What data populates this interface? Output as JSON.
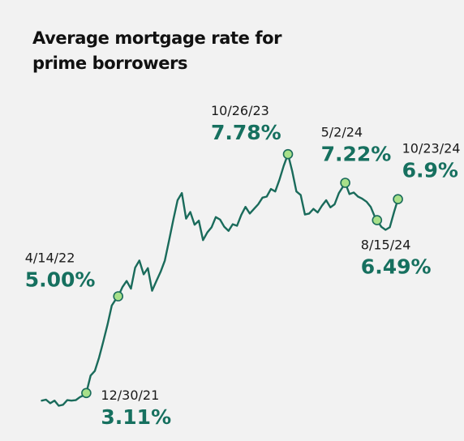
{
  "chart_data": {
    "type": "line",
    "title": "Average mortgage rate for prime borrowers",
    "xlabel": "",
    "ylabel": "",
    "grid": false,
    "legend": "none",
    "line_color": "#1a6b5b",
    "marker_color": "#a8e08a",
    "value_color": "#16705f",
    "ylim": [
      2.9,
      8.1
    ],
    "x_range": [
      "2021-08-01",
      "2024-11-01"
    ],
    "series": [
      {
        "x": [
          "2021-08-05",
          "2021-08-19",
          "2021-09-02",
          "2021-09-16",
          "2021-09-30",
          "2021-10-14",
          "2021-10-28",
          "2021-11-11",
          "2021-11-25",
          "2021-12-09",
          "2021-12-23",
          "2021-12-30",
          "2022-01-13",
          "2022-01-27",
          "2022-02-10",
          "2022-02-24",
          "2022-03-10",
          "2022-03-24",
          "2022-04-07",
          "2022-04-14",
          "2022-04-28",
          "2022-05-12",
          "2022-05-26",
          "2022-06-09",
          "2022-06-23",
          "2022-07-07",
          "2022-07-21",
          "2022-08-04",
          "2022-08-18",
          "2022-09-01",
          "2022-09-15",
          "2022-09-29",
          "2022-10-13",
          "2022-10-27",
          "2022-11-10",
          "2022-11-24",
          "2022-12-08",
          "2022-12-22",
          "2023-01-05",
          "2023-01-19",
          "2023-02-02",
          "2023-02-16",
          "2023-03-02",
          "2023-03-16",
          "2023-03-30",
          "2023-04-13",
          "2023-04-27",
          "2023-05-11",
          "2023-05-25",
          "2023-06-08",
          "2023-06-22",
          "2023-07-06",
          "2023-07-20",
          "2023-08-03",
          "2023-08-17",
          "2023-08-31",
          "2023-09-14",
          "2023-09-28",
          "2023-10-12",
          "2023-10-26",
          "2023-11-09",
          "2023-11-23",
          "2023-12-07",
          "2023-12-21",
          "2024-01-04",
          "2024-01-18",
          "2024-02-01",
          "2024-02-15",
          "2024-02-29",
          "2024-03-14",
          "2024-03-28",
          "2024-04-11",
          "2024-04-25",
          "2024-05-02",
          "2024-05-16",
          "2024-05-30",
          "2024-06-13",
          "2024-06-27",
          "2024-07-11",
          "2024-07-25",
          "2024-08-08",
          "2024-08-15",
          "2024-08-29",
          "2024-09-12",
          "2024-09-26",
          "2024-10-10",
          "2024-10-23"
        ],
        "values": [
          2.96,
          2.98,
          2.91,
          2.96,
          2.86,
          2.88,
          2.97,
          2.96,
          2.97,
          3.03,
          3.07,
          3.11,
          3.45,
          3.54,
          3.8,
          4.12,
          4.45,
          4.82,
          4.95,
          5.0,
          5.18,
          5.3,
          5.15,
          5.56,
          5.7,
          5.43,
          5.55,
          5.11,
          5.3,
          5.48,
          5.7,
          6.1,
          6.5,
          6.88,
          7.02,
          6.52,
          6.65,
          6.4,
          6.48,
          6.1,
          6.25,
          6.35,
          6.55,
          6.5,
          6.36,
          6.28,
          6.41,
          6.38,
          6.59,
          6.75,
          6.62,
          6.71,
          6.8,
          6.93,
          6.95,
          7.1,
          7.05,
          7.28,
          7.55,
          7.78,
          7.45,
          7.05,
          6.98,
          6.6,
          6.62,
          6.71,
          6.64,
          6.77,
          6.88,
          6.74,
          6.8,
          7.02,
          7.15,
          7.22,
          7.0,
          7.03,
          6.95,
          6.91,
          6.85,
          6.75,
          6.55,
          6.49,
          6.36,
          6.3,
          6.35,
          6.65,
          6.9
        ]
      }
    ],
    "annotations": [
      {
        "date": "12/30/21",
        "value": 3.11,
        "value_label": "3.11%",
        "date_iso": "2021-12-30"
      },
      {
        "date": "4/14/22",
        "value": 5.0,
        "value_label": "5.00%",
        "date_iso": "2022-04-14"
      },
      {
        "date": "10/26/23",
        "value": 7.78,
        "value_label": "7.78%",
        "date_iso": "2023-10-26"
      },
      {
        "date": "5/2/24",
        "value": 7.22,
        "value_label": "7.22%",
        "date_iso": "2024-05-02"
      },
      {
        "date": "8/15/24",
        "value": 6.49,
        "value_label": "6.49%",
        "date_iso": "2024-08-15"
      },
      {
        "date": "10/23/24",
        "value": 6.9,
        "value_label": "6.9%",
        "date_iso": "2024-10-23"
      }
    ]
  }
}
